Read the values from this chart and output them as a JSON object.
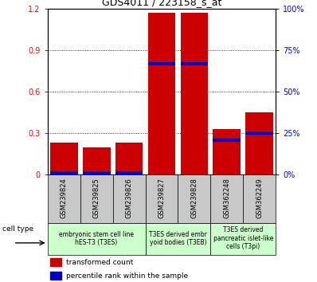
{
  "title": "GDS4011 / 223158_s_at",
  "samples": [
    "GSM239824",
    "GSM239825",
    "GSM239826",
    "GSM239827",
    "GSM239828",
    "GSM362248",
    "GSM362249"
  ],
  "red_values": [
    0.23,
    0.2,
    0.23,
    1.17,
    1.17,
    0.33,
    0.45
  ],
  "blue_values": [
    0.016,
    0.016,
    0.016,
    0.8,
    0.8,
    0.25,
    0.3
  ],
  "ylim_left": [
    0,
    1.2
  ],
  "ylim_right": [
    0,
    100
  ],
  "yticks_left": [
    0,
    0.3,
    0.6,
    0.9,
    1.2
  ],
  "yticks_right": [
    0,
    25,
    50,
    75,
    100
  ],
  "bar_width": 0.85,
  "red_color": "#cc0000",
  "blue_color": "#0000cc",
  "legend_red": "transformed count",
  "legend_blue": "percentile rank within the sample",
  "cell_type_label": "cell type",
  "groups": [
    {
      "start": 0,
      "end": 3,
      "label": "embryonic stem cell line\nhES-T3 (T3ES)"
    },
    {
      "start": 3,
      "end": 5,
      "label": "T3ES derived embr\nyoid bodies (T3EB)"
    },
    {
      "start": 5,
      "end": 7,
      "label": "T3ES derived\npancreatic islet-like\ncells (T3pi)"
    }
  ],
  "group_color": "#ccffcc",
  "label_bg": "#c8c8c8",
  "title_fontsize": 9,
  "tick_fontsize": 7,
  "label_fontsize": 6,
  "group_fontsize": 5.5
}
